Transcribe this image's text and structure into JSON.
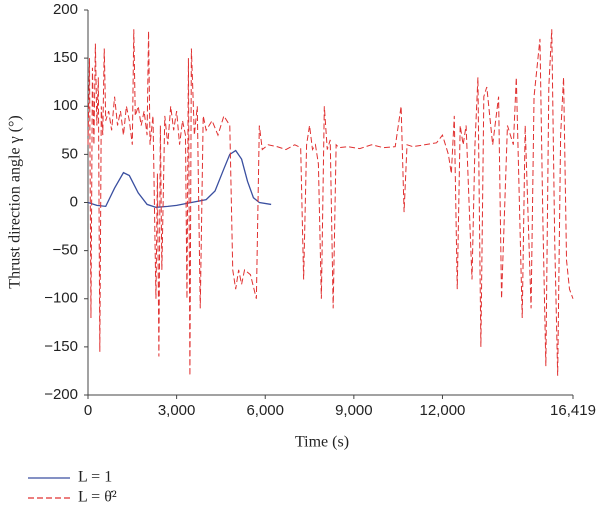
{
  "chart_data": {
    "type": "line",
    "xlabel": "Time (s)",
    "ylabel": "Thrust direction angle γ (°)",
    "xlim": [
      0,
      16419
    ],
    "ylim": [
      -200,
      200
    ],
    "xticks": [
      0,
      {
        "value": 3000,
        "label": "3,000"
      },
      {
        "value": 6000,
        "label": "6,000"
      },
      {
        "value": 9000,
        "label": "9,000"
      },
      {
        "value": 12000,
        "label": "12,000"
      },
      {
        "value": 16419,
        "label": "16,419"
      }
    ],
    "yticks": [
      {
        "value": -200,
        "label": "−200"
      },
      {
        "value": -150,
        "label": "−150"
      },
      {
        "value": -100,
        "label": "−100"
      },
      {
        "value": -50,
        "label": "−50"
      },
      0,
      50,
      100,
      150,
      200
    ],
    "legend": "bottom-left",
    "series": [
      {
        "name": "L = 1",
        "color": "#3a4fa0",
        "dash": false,
        "x": [
          0,
          300,
          600,
          900,
          1200,
          1400,
          1700,
          2000,
          2300,
          2700,
          3000,
          3500,
          4000,
          4300,
          4600,
          4800,
          5000,
          5200,
          5400,
          5600,
          5800,
          6200
        ],
        "values": [
          0,
          -3,
          -4,
          15,
          31,
          28,
          10,
          -2,
          -5,
          -4,
          -3,
          0,
          3,
          12,
          35,
          50,
          54,
          45,
          22,
          5,
          0,
          -2
        ]
      },
      {
        "name": "L = θ̇²",
        "color": "#e03030",
        "dash": true,
        "x": [
          0,
          50,
          100,
          150,
          200,
          250,
          300,
          350,
          400,
          450,
          500,
          550,
          600,
          700,
          800,
          900,
          1000,
          1100,
          1200,
          1300,
          1400,
          1500,
          1550,
          1600,
          1700,
          1800,
          1900,
          2000,
          2050,
          2100,
          2200,
          2300,
          2350,
          2400,
          2450,
          2500,
          2600,
          2700,
          2800,
          2900,
          3000,
          3100,
          3200,
          3300,
          3350,
          3400,
          3450,
          3500,
          3600,
          3700,
          3800,
          3900,
          4000,
          4200,
          4400,
          4600,
          4800,
          4900,
          5000,
          5100,
          5200,
          5300,
          5500,
          5700,
          5800,
          5900,
          6100,
          6400,
          6700,
          7000,
          7200,
          7300,
          7400,
          7500,
          7600,
          7700,
          7800,
          7900,
          8000,
          8100,
          8200,
          8300,
          8400,
          8500,
          8800,
          9200,
          9600,
          10000,
          10400,
          10600,
          10700,
          10800,
          11000,
          11400,
          11800,
          12000,
          12200,
          12300,
          12400,
          12500,
          12600,
          12700,
          12800,
          13000,
          13100,
          13200,
          13300,
          13400,
          13500,
          13700,
          13900,
          14000,
          14200,
          14400,
          14500,
          14700,
          14800,
          15000,
          15100,
          15300,
          15400,
          15500,
          15600,
          15700,
          15800,
          15900,
          16000,
          16100,
          16200,
          16300,
          16419
        ],
        "values": [
          60,
          150,
          -120,
          140,
          60,
          165,
          80,
          130,
          -155,
          100,
          70,
          160,
          85,
          95,
          75,
          110,
          80,
          95,
          70,
          100,
          85,
          60,
          180,
          90,
          100,
          80,
          95,
          70,
          178,
          60,
          90,
          -100,
          30,
          -160,
          80,
          -70,
          90,
          60,
          100,
          75,
          95,
          60,
          85,
          70,
          -100,
          150,
          -180,
          160,
          70,
          100,
          -110,
          90,
          75,
          85,
          70,
          90,
          80,
          -70,
          -90,
          -70,
          -85,
          -70,
          -75,
          -100,
          80,
          55,
          60,
          58,
          55,
          60,
          57,
          -80,
          60,
          80,
          55,
          60,
          40,
          -100,
          100,
          55,
          65,
          -110,
          60,
          57,
          58,
          56,
          60,
          57,
          58,
          100,
          -10,
          60,
          58,
          60,
          62,
          70,
          50,
          30,
          90,
          -90,
          80,
          60,
          80,
          -80,
          60,
          130,
          -150,
          110,
          120,
          60,
          110,
          -100,
          80,
          60,
          130,
          -120,
          80,
          -110,
          110,
          170,
          -20,
          -170,
          120,
          180,
          -40,
          -180,
          70,
          130,
          -60,
          -90,
          -100
        ]
      }
    ]
  }
}
